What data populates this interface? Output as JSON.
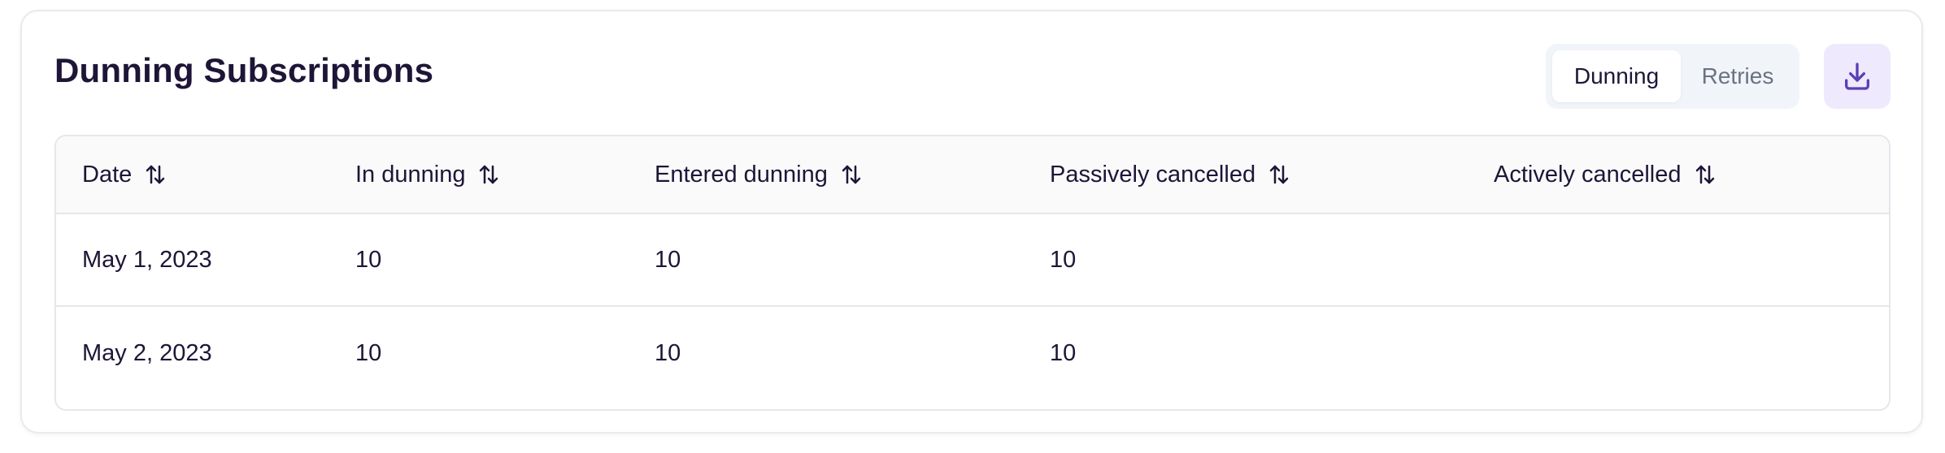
{
  "card": {
    "title": "Dunning Subscriptions"
  },
  "toggle": {
    "options": [
      {
        "label": "Dunning",
        "active": true
      },
      {
        "label": "Retries",
        "active": false
      }
    ]
  },
  "download": {
    "icon": "download-icon"
  },
  "table": {
    "columns": [
      {
        "label": "Date",
        "icon": "sort-arrows-icon"
      },
      {
        "label": "In dunning",
        "icon": "sort-arrows-icon"
      },
      {
        "label": "Entered dunning",
        "icon": "sort-arrows-icon"
      },
      {
        "label": "Passively cancelled",
        "icon": "sort-arrows-icon"
      },
      {
        "label": "Actively cancelled",
        "icon": "sort-arrows-icon"
      }
    ],
    "rows": [
      {
        "date": "May 1, 2023",
        "in_dunning": "10",
        "entered_dunning": "10",
        "passively_cancelled": "10",
        "actively_cancelled": ""
      },
      {
        "date": "May 2, 2023",
        "in_dunning": "10",
        "entered_dunning": "10",
        "passively_cancelled": "10",
        "actively_cancelled": ""
      }
    ]
  },
  "colors": {
    "text": "#1e1537",
    "muted": "#6b7280",
    "accent": "#5b3fb5",
    "accent_bg": "#efe9fd",
    "toggle_bg": "#f1f4f9",
    "border": "#e6e6ec"
  }
}
